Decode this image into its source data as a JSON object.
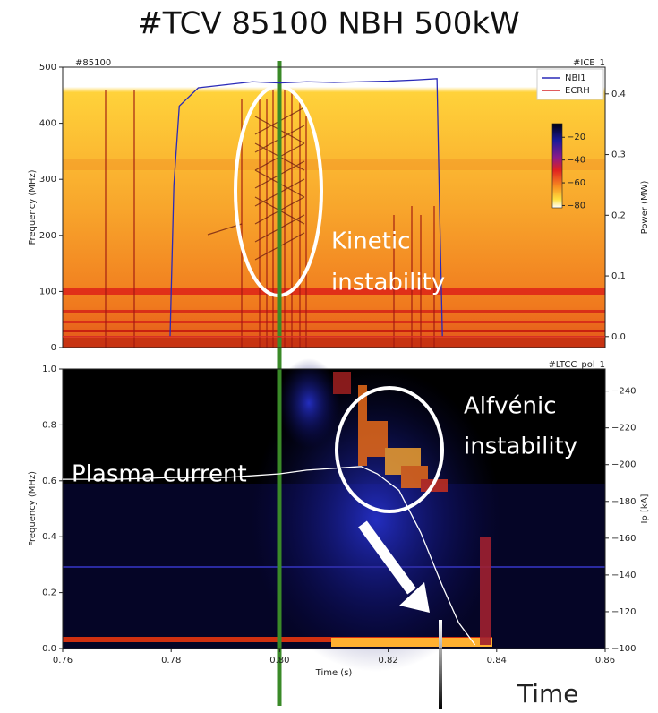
{
  "title": "#TCV 85100 NBH 500kW",
  "chart_data": [
    {
      "type": "line",
      "shot_label": "#85100",
      "diagnostic": "#ICE_1",
      "ylabel": "Frequency (MHz)",
      "ylim": [
        0,
        500
      ],
      "yticks": [
        0,
        100,
        200,
        300,
        400,
        500
      ],
      "y2label": "Power (MW)",
      "y2lim": [
        -0.018,
        0.444
      ],
      "y2ticks": [
        {
          "value": 0,
          "label": "0.0"
        },
        0.1,
        0.2,
        0.3,
        0.4
      ],
      "xlim": [
        0.76,
        0.86
      ],
      "colorbar": {
        "clim": [
          -82,
          -8
        ],
        "ticks": [
          {
            "value": -20,
            "label": "−20"
          },
          {
            "value": -40,
            "label": "−40"
          },
          {
            "value": -60,
            "label": "−60"
          },
          {
            "value": -80,
            "label": "−80"
          }
        ]
      },
      "legend": "upper right",
      "series": [
        {
          "name": "NBI1",
          "color": "#2a2ab8",
          "axis": "y2",
          "x": [
            0.7798,
            0.7805,
            0.7815,
            0.785,
            0.79,
            0.795,
            0.8,
            0.805,
            0.81,
            0.815,
            0.82,
            0.825,
            0.829,
            0.8295,
            0.83
          ],
          "values": [
            0.0,
            0.25,
            0.38,
            0.41,
            0.415,
            0.42,
            0.418,
            0.42,
            0.419,
            0.42,
            0.421,
            0.423,
            0.425,
            0.2,
            0.0
          ]
        },
        {
          "name": "ECRH",
          "color": "#d62728",
          "axis": "y2",
          "x": [
            0.76,
            0.86
          ],
          "values": [
            0.0,
            0.0
          ]
        }
      ]
    },
    {
      "type": "line",
      "diagnostic": "#LTCC_pol_1",
      "ylabel": "Frequency (MHz)",
      "ylim": [
        0,
        1
      ],
      "yticks": [
        {
          "value": 0,
          "label": "0.0"
        },
        0.2,
        0.4,
        0.6,
        0.8,
        {
          "value": 1,
          "label": "1.0"
        }
      ],
      "y2label": "Ip [kA]",
      "y2lim": [
        -100,
        -252
      ],
      "y2ticks": [
        {
          "value": -100,
          "label": "−100"
        },
        {
          "value": -120,
          "label": "−120"
        },
        {
          "value": -140,
          "label": "−140"
        },
        {
          "value": -160,
          "label": "−160"
        },
        {
          "value": -180,
          "label": "−180"
        },
        {
          "value": -200,
          "label": "−200"
        },
        {
          "value": -220,
          "label": "−220"
        },
        {
          "value": -240,
          "label": "−240"
        }
      ],
      "xlabel": "Time (s)",
      "xlim": [
        0.76,
        0.86
      ],
      "xticks": [
        0.76,
        0.78,
        {
          "value": 0.8,
          "label": "0.80"
        },
        0.82,
        0.84,
        0.86
      ],
      "series": [
        {
          "name": "Plasma current",
          "color": "#ffffff",
          "axis": "y2",
          "x": [
            0.76,
            0.77,
            0.78,
            0.79,
            0.795,
            0.8,
            0.805,
            0.81,
            0.815,
            0.818,
            0.822,
            0.826,
            0.83,
            0.833,
            0.836
          ],
          "values": [
            -192,
            -192,
            -193,
            -193,
            -194,
            -195,
            -197,
            -198,
            -199,
            -195,
            -186,
            -163,
            -134,
            -114,
            -102
          ]
        }
      ]
    }
  ],
  "annotations": [
    {
      "lines": [
        "Kinetic",
        "instability"
      ]
    },
    {
      "lines": [
        "Alfvénic",
        "instability"
      ]
    },
    {
      "lines": [
        "Plasma current"
      ]
    },
    {
      "lines": [
        "Time"
      ]
    }
  ]
}
